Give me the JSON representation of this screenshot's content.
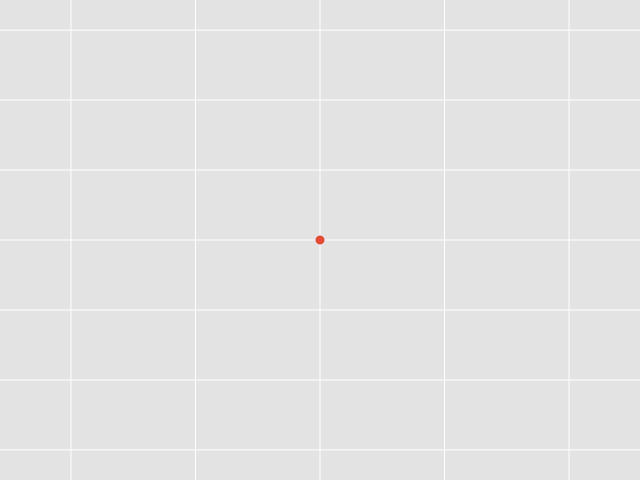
{
  "chart_data": {
    "type": "scatter",
    "x": [
      0
    ],
    "y": [
      0
    ],
    "xlim": [
      -2.57,
      2.57
    ],
    "ylim": [
      -3.43,
      3.43
    ],
    "xticks": [
      -2,
      -1,
      0,
      1,
      2
    ],
    "yticks": [
      -3,
      -2,
      -1,
      0,
      1,
      2,
      3
    ],
    "grid": true,
    "colors": {
      "panel": "#e3e3e3",
      "grid": "#ffffff",
      "point": "#e24a33"
    }
  }
}
